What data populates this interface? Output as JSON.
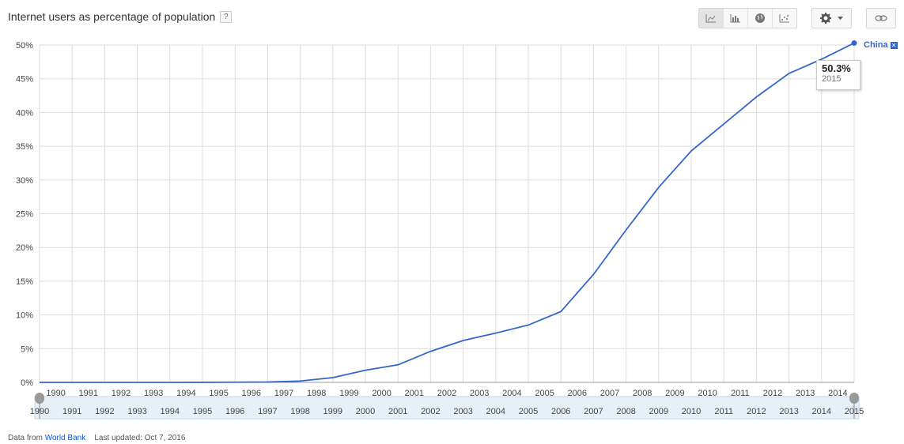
{
  "header": {
    "title": "Internet users as percentage of population",
    "help_label": "?"
  },
  "toolbar": {
    "chart_type_buttons": [
      {
        "icon": "line-chart-icon",
        "active": true
      },
      {
        "icon": "bar-chart-icon",
        "active": false
      },
      {
        "icon": "globe-map-icon",
        "active": false
      },
      {
        "icon": "scatter-chart-icon",
        "active": false
      }
    ],
    "settings_icon": "gear-icon",
    "dropdown_icon": "caret-down-icon",
    "link_icon": "link-icon"
  },
  "tooltip": {
    "value": "50.3%",
    "year": "2015"
  },
  "series_label": {
    "name": "China",
    "close": "✕"
  },
  "footer": {
    "prefix": "Data from",
    "source": "World Bank",
    "updated": "Last updated: Oct 7, 2016"
  },
  "colors": {
    "series": "#3366cc",
    "grid": "#dddddd",
    "slider_fill": "#e8f0f7",
    "slider_handle": "#9a9a9a"
  },
  "chart_data": {
    "type": "line",
    "title": "Internet users as percentage of population",
    "x": [
      1990,
      1991,
      1992,
      1993,
      1994,
      1995,
      1996,
      1997,
      1998,
      1999,
      2000,
      2001,
      2002,
      2003,
      2004,
      2005,
      2006,
      2007,
      2008,
      2009,
      2010,
      2011,
      2012,
      2013,
      2014,
      2015
    ],
    "series": [
      {
        "name": "China",
        "values": [
          0,
          0,
          0,
          0,
          0.001,
          0.005,
          0.03,
          0.05,
          0.2,
          0.7,
          1.8,
          2.6,
          4.6,
          6.2,
          7.3,
          8.5,
          10.5,
          16.0,
          22.6,
          28.9,
          34.3,
          38.3,
          42.3,
          45.8,
          47.9,
          50.3
        ]
      }
    ],
    "x_tick_labels": [
      "1990",
      "1991",
      "1992",
      "1993",
      "1994",
      "1995",
      "1996",
      "1997",
      "1998",
      "1999",
      "2000",
      "2001",
      "2002",
      "2003",
      "2004",
      "2005",
      "2006",
      "2007",
      "2008",
      "2009",
      "2010",
      "2011",
      "2012",
      "2013",
      "2014"
    ],
    "y_tick_labels": [
      "0%",
      "5%",
      "10%",
      "15%",
      "20%",
      "25%",
      "30%",
      "35%",
      "40%",
      "45%",
      "50%"
    ],
    "y_ticks": [
      0,
      5,
      10,
      15,
      20,
      25,
      30,
      35,
      40,
      45,
      50
    ],
    "ylim": [
      0,
      50
    ],
    "xlim": [
      1990,
      2015
    ],
    "grid": true,
    "highlight": {
      "year": 2015,
      "value": 50.3
    },
    "range_slider": {
      "labels": [
        "1990",
        "1991",
        "1992",
        "1993",
        "1994",
        "1995",
        "1996",
        "1997",
        "1998",
        "1999",
        "2000",
        "2001",
        "2002",
        "2003",
        "2004",
        "2005",
        "2006",
        "2007",
        "2008",
        "2009",
        "2010",
        "2011",
        "2012",
        "2013",
        "2014",
        "2015"
      ],
      "start": 1990,
      "end": 2015
    }
  }
}
